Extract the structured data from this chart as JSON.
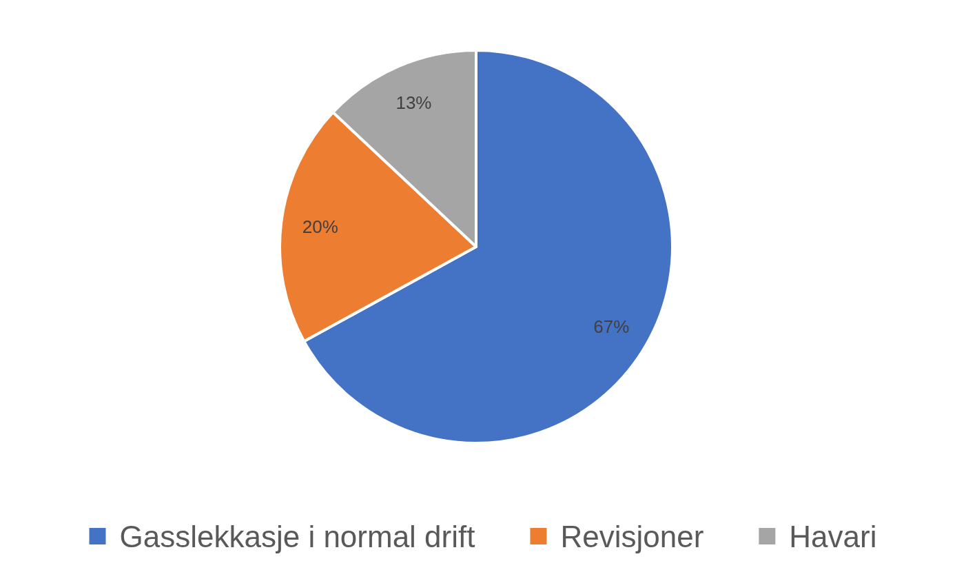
{
  "chart_data": {
    "type": "pie",
    "categories": [
      "Gasslekkasje i normal drift",
      "Revisjoner",
      "Havari"
    ],
    "values": [
      67,
      20,
      13
    ],
    "colors": [
      "#4472c4",
      "#ed7d31",
      "#a5a5a5"
    ],
    "value_labels": [
      "67%",
      "20%",
      "13%"
    ],
    "legend": "bottom"
  }
}
